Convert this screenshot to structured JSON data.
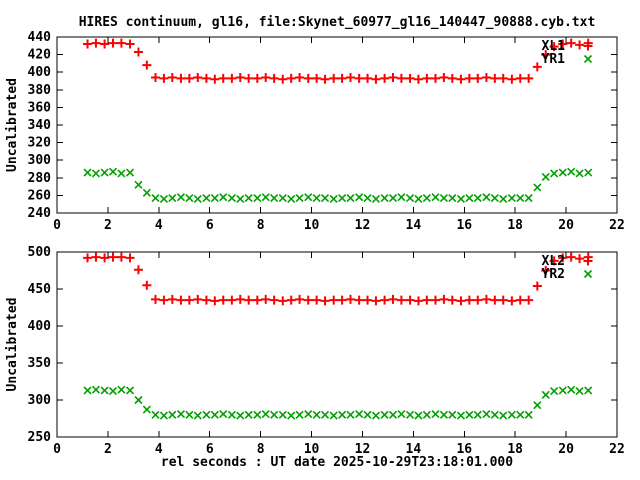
{
  "title": "HIRES continuum, gl16, file:Skynet_60977_gl16_140447_90888.cyb.txt",
  "colors": {
    "series_red": "#ff0000",
    "series_green": "#00a000",
    "axis": "#000000",
    "background": "#ffffff"
  },
  "chart_data": [
    {
      "type": "scatter",
      "panel": "top",
      "ylabel": "Uncalibrated",
      "xlabel": "",
      "xlim": [
        0,
        22
      ],
      "ylim": [
        240,
        440
      ],
      "xticks": [
        0,
        2,
        4,
        6,
        8,
        10,
        12,
        14,
        16,
        18,
        20,
        22
      ],
      "yticks": [
        240,
        260,
        280,
        300,
        320,
        340,
        360,
        380,
        400,
        420,
        440
      ],
      "grid": false,
      "legend_position": "top-right-inside",
      "x": [
        1.2,
        1.53,
        1.87,
        2.2,
        2.53,
        2.87,
        3.2,
        3.53,
        3.87,
        4.2,
        4.53,
        4.87,
        5.2,
        5.53,
        5.87,
        6.2,
        6.53,
        6.87,
        7.2,
        7.53,
        7.87,
        8.2,
        8.53,
        8.87,
        9.2,
        9.53,
        9.87,
        10.2,
        10.53,
        10.87,
        11.2,
        11.53,
        11.87,
        12.2,
        12.53,
        12.87,
        13.2,
        13.53,
        13.87,
        14.2,
        14.53,
        14.87,
        15.2,
        15.53,
        15.87,
        16.2,
        16.53,
        16.87,
        17.2,
        17.53,
        17.87,
        18.2,
        18.53,
        18.87,
        19.2,
        19.53,
        19.87,
        20.2,
        20.53,
        20.87
      ],
      "series": [
        {
          "name": "XL1",
          "marker": "plus",
          "color": "#ff0000",
          "y": [
            432,
            433,
            432,
            433,
            433,
            432,
            423,
            408,
            394,
            393,
            394,
            393,
            393,
            394,
            393,
            392,
            393,
            393,
            394,
            393,
            393,
            394,
            393,
            392,
            393,
            394,
            393,
            393,
            392,
            393,
            393,
            394,
            393,
            393,
            392,
            393,
            394,
            393,
            393,
            392,
            393,
            393,
            394,
            393,
            392,
            393,
            393,
            394,
            393,
            393,
            392,
            393,
            393,
            406,
            420,
            429,
            432,
            433,
            431,
            433
          ]
        },
        {
          "name": "YR1",
          "marker": "cross",
          "color": "#00a000",
          "y": [
            286,
            285,
            286,
            287,
            285,
            286,
            272,
            263,
            257,
            256,
            257,
            258,
            257,
            256,
            257,
            257,
            258,
            257,
            256,
            257,
            257,
            258,
            257,
            257,
            256,
            257,
            258,
            257,
            257,
            256,
            257,
            257,
            258,
            257,
            256,
            257,
            257,
            258,
            257,
            256,
            257,
            258,
            257,
            257,
            256,
            257,
            257,
            258,
            257,
            256,
            257,
            257,
            257,
            269,
            281,
            285,
            286,
            287,
            285,
            286
          ]
        }
      ]
    },
    {
      "type": "scatter",
      "panel": "bottom",
      "ylabel": "Uncalibrated",
      "xlabel": "rel seconds : UT date 2025-10-29T23:18:01.000",
      "xlim": [
        0,
        22
      ],
      "ylim": [
        250,
        500
      ],
      "xticks": [
        0,
        2,
        4,
        6,
        8,
        10,
        12,
        14,
        16,
        18,
        20,
        22
      ],
      "yticks": [
        250,
        300,
        350,
        400,
        450,
        500
      ],
      "grid": false,
      "legend_position": "top-right-inside",
      "x": [
        1.2,
        1.53,
        1.87,
        2.2,
        2.53,
        2.87,
        3.2,
        3.53,
        3.87,
        4.2,
        4.53,
        4.87,
        5.2,
        5.53,
        5.87,
        6.2,
        6.53,
        6.87,
        7.2,
        7.53,
        7.87,
        8.2,
        8.53,
        8.87,
        9.2,
        9.53,
        9.87,
        10.2,
        10.53,
        10.87,
        11.2,
        11.53,
        11.87,
        12.2,
        12.53,
        12.87,
        13.2,
        13.53,
        13.87,
        14.2,
        14.53,
        14.87,
        15.2,
        15.53,
        15.87,
        16.2,
        16.53,
        16.87,
        17.2,
        17.53,
        17.87,
        18.2,
        18.53,
        18.87,
        19.2,
        19.53,
        19.87,
        20.2,
        20.53,
        20.87
      ],
      "series": [
        {
          "name": "XL2",
          "marker": "plus",
          "color": "#ff0000",
          "y": [
            492,
            493,
            492,
            493,
            493,
            492,
            476,
            455,
            436,
            435,
            436,
            435,
            435,
            436,
            435,
            434,
            435,
            435,
            436,
            435,
            435,
            436,
            435,
            434,
            435,
            436,
            435,
            435,
            434,
            435,
            435,
            436,
            435,
            435,
            434,
            435,
            436,
            435,
            435,
            434,
            435,
            435,
            436,
            435,
            434,
            435,
            435,
            436,
            435,
            435,
            434,
            435,
            435,
            454,
            475,
            488,
            492,
            493,
            491,
            493
          ]
        },
        {
          "name": "YR2",
          "marker": "cross",
          "color": "#00a000",
          "y": [
            313,
            314,
            313,
            312,
            314,
            313,
            300,
            287,
            280,
            279,
            280,
            281,
            280,
            279,
            280,
            280,
            281,
            280,
            279,
            280,
            280,
            281,
            280,
            280,
            279,
            280,
            281,
            280,
            280,
            279,
            280,
            280,
            281,
            280,
            279,
            280,
            280,
            281,
            280,
            279,
            280,
            281,
            280,
            280,
            279,
            280,
            280,
            281,
            280,
            279,
            280,
            280,
            280,
            293,
            307,
            312,
            313,
            314,
            312,
            313
          ]
        }
      ]
    }
  ]
}
